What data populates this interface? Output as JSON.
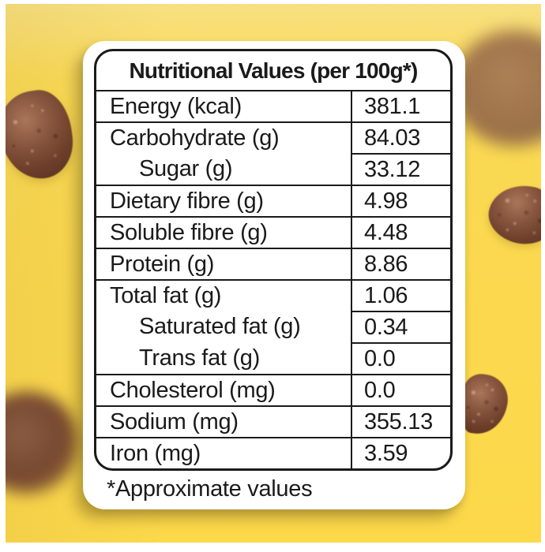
{
  "title": "Nutritional Values (per 100g*)",
  "footnote": "*Approximate values",
  "table": {
    "rows": [
      {
        "label": "Energy (kcal)",
        "value": "381.1"
      },
      {
        "label": "Carbohydrate (g)",
        "value": "84.03"
      },
      {
        "label": "Sugar (g)",
        "value": "33.12"
      },
      {
        "label": "Dietary fibre (g)",
        "value": "4.98"
      },
      {
        "label": "Soluble fibre (g)",
        "value": "4.48"
      },
      {
        "label": "Protein (g)",
        "value": "8.86"
      },
      {
        "label": "Total fat (g)",
        "value": "1.06"
      },
      {
        "label": "Saturated fat (g)",
        "value": "0.34"
      },
      {
        "label": "Trans fat (g)",
        "value": "0.0"
      },
      {
        "label": "Cholesterol (mg)",
        "value": "0.0"
      },
      {
        "label": "Sodium (mg)",
        "value": "355.13"
      },
      {
        "label": "Iron (mg)",
        "value": "3.59"
      }
    ]
  },
  "colors": {
    "background_yellow": "#FBD84E",
    "card_white": "#FFFFFF",
    "text_black": "#1A1A1A",
    "chocolate_brown": "#7B4B33",
    "chocolate_light": "#A97C5A"
  },
  "decor": {
    "chocolate_balls_count": 5
  }
}
